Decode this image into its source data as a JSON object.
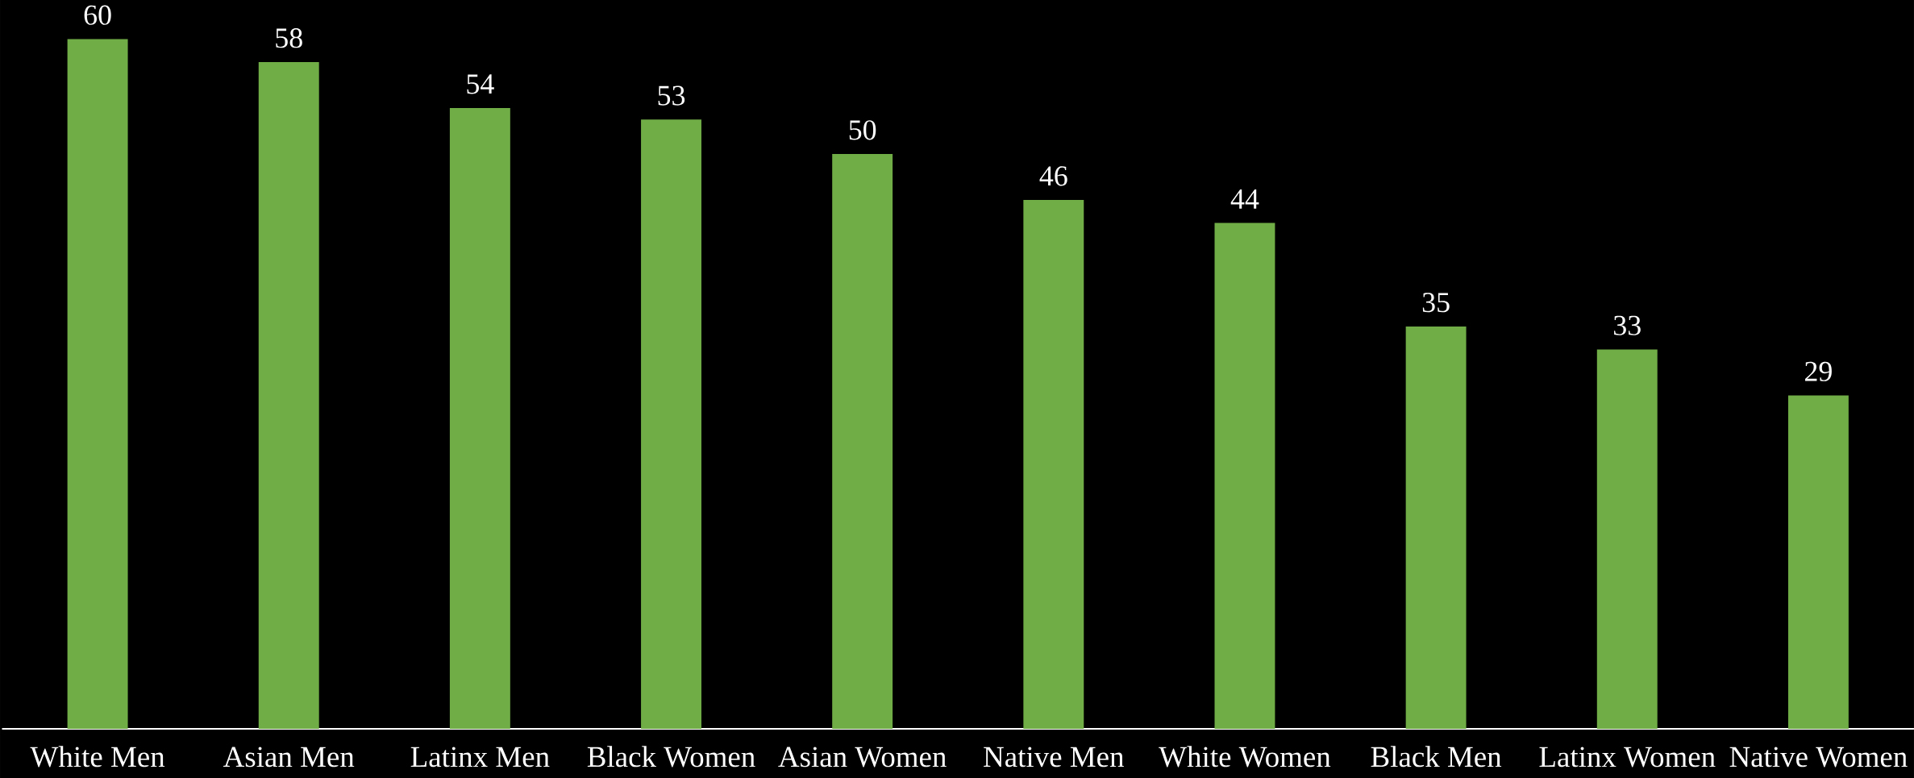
{
  "chart_data": {
    "type": "bar",
    "categories": [
      "White Men",
      "Asian Men",
      "Latinx Men",
      "Black Women",
      "Asian Women",
      "Native Men",
      "White Women",
      "Black Men",
      "Latinx Women",
      "Native Women"
    ],
    "values": [
      60,
      58,
      54,
      53,
      50,
      46,
      44,
      35,
      33,
      29
    ],
    "color": "#70ad47",
    "data_labels": true,
    "ylim": [
      0,
      63.4
    ]
  }
}
